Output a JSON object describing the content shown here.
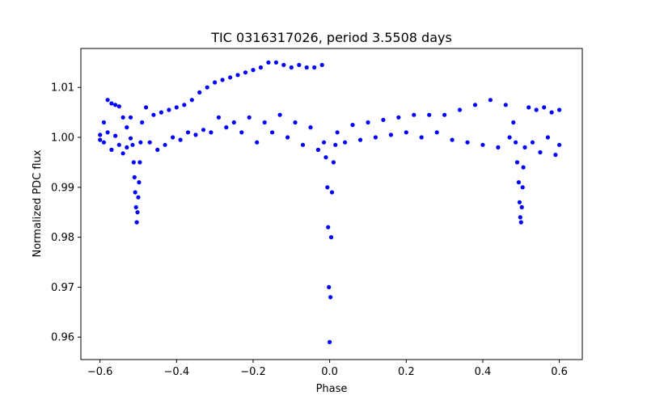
{
  "chart_data": {
    "type": "scatter",
    "title": "TIC 0316317026, period 3.5508 days",
    "xlabel": "Phase",
    "ylabel": "Normalized PDC flux",
    "xlim": [
      -0.65,
      0.66
    ],
    "ylim": [
      0.9555,
      1.0178
    ],
    "xticks": [
      -0.6,
      -0.4,
      -0.2,
      0.0,
      0.2,
      0.4,
      0.6
    ],
    "xtick_labels": [
      "−0.6",
      "−0.4",
      "−0.2",
      "0.0",
      "0.2",
      "0.4",
      "0.6"
    ],
    "yticks": [
      0.96,
      0.97,
      0.98,
      0.99,
      1.0,
      1.01
    ],
    "ytick_labels": [
      "0.96",
      "0.97",
      "0.98",
      "0.99",
      "1.00",
      "1.01"
    ],
    "grid": false,
    "marker_color": "#0000ff",
    "series": [
      {
        "points": [
          [
            -0.6,
            1.0005
          ],
          [
            -0.6,
            0.9995
          ],
          [
            -0.59,
            1.003
          ],
          [
            -0.59,
            0.999
          ],
          [
            -0.58,
            1.0075
          ],
          [
            -0.58,
            1.001
          ],
          [
            -0.57,
            1.0068
          ],
          [
            -0.57,
            0.9975
          ],
          [
            -0.56,
            1.0065
          ],
          [
            -0.56,
            1.0003
          ],
          [
            -0.55,
            1.0062
          ],
          [
            -0.55,
            0.9985
          ],
          [
            -0.54,
            1.004
          ],
          [
            -0.54,
            0.9968
          ],
          [
            -0.53,
            1.002
          ],
          [
            -0.53,
            0.998
          ],
          [
            -0.52,
            1.004
          ],
          [
            -0.52,
            0.9998
          ],
          [
            -0.515,
            0.9985
          ],
          [
            -0.512,
            0.995
          ],
          [
            -0.51,
            0.992
          ],
          [
            -0.508,
            0.989
          ],
          [
            -0.506,
            0.986
          ],
          [
            -0.504,
            0.983
          ],
          [
            -0.502,
            0.985
          ],
          [
            -0.5,
            0.988
          ],
          [
            -0.498,
            0.991
          ],
          [
            -0.496,
            0.995
          ],
          [
            -0.494,
            0.999
          ],
          [
            -0.49,
            1.003
          ],
          [
            -0.48,
            1.006
          ],
          [
            -0.47,
            0.999
          ],
          [
            -0.46,
            1.0045
          ],
          [
            -0.45,
            0.9975
          ],
          [
            -0.44,
            1.005
          ],
          [
            -0.43,
            0.9985
          ],
          [
            -0.42,
            1.0055
          ],
          [
            -0.41,
            1.0
          ],
          [
            -0.4,
            1.006
          ],
          [
            -0.39,
            0.9995
          ],
          [
            -0.38,
            1.0065
          ],
          [
            -0.37,
            1.001
          ],
          [
            -0.36,
            1.0075
          ],
          [
            -0.35,
            1.0005
          ],
          [
            -0.34,
            1.009
          ],
          [
            -0.33,
            1.0015
          ],
          [
            -0.32,
            1.01
          ],
          [
            -0.31,
            1.001
          ],
          [
            -0.3,
            1.011
          ],
          [
            -0.29,
            1.004
          ],
          [
            -0.28,
            1.0115
          ],
          [
            -0.27,
            1.002
          ],
          [
            -0.26,
            1.012
          ],
          [
            -0.25,
            1.003
          ],
          [
            -0.24,
            1.0125
          ],
          [
            -0.23,
            1.001
          ],
          [
            -0.22,
            1.013
          ],
          [
            -0.21,
            1.004
          ],
          [
            -0.2,
            1.0135
          ],
          [
            -0.19,
            0.999
          ],
          [
            -0.18,
            1.014
          ],
          [
            -0.17,
            1.003
          ],
          [
            -0.16,
            1.015
          ],
          [
            -0.15,
            1.001
          ],
          [
            -0.14,
            1.015
          ],
          [
            -0.13,
            1.0045
          ],
          [
            -0.12,
            1.0145
          ],
          [
            -0.11,
            1.0
          ],
          [
            -0.1,
            1.014
          ],
          [
            -0.09,
            1.003
          ],
          [
            -0.08,
            1.0145
          ],
          [
            -0.07,
            0.9985
          ],
          [
            -0.06,
            1.014
          ],
          [
            -0.05,
            1.002
          ],
          [
            -0.04,
            1.014
          ],
          [
            -0.03,
            0.9975
          ],
          [
            -0.02,
            1.0145
          ],
          [
            -0.015,
            0.999
          ],
          [
            -0.01,
            0.996
          ],
          [
            -0.006,
            0.99
          ],
          [
            -0.004,
            0.982
          ],
          [
            -0.002,
            0.97
          ],
          [
            0.0,
            0.959
          ],
          [
            0.002,
            0.968
          ],
          [
            0.004,
            0.98
          ],
          [
            0.006,
            0.989
          ],
          [
            0.01,
            0.995
          ],
          [
            0.015,
            0.9985
          ],
          [
            0.02,
            1.001
          ],
          [
            0.04,
            0.999
          ],
          [
            0.06,
            1.0025
          ],
          [
            0.08,
            0.9995
          ],
          [
            0.1,
            1.003
          ],
          [
            0.12,
            1.0
          ],
          [
            0.14,
            1.0035
          ],
          [
            0.16,
            1.0005
          ],
          [
            0.18,
            1.004
          ],
          [
            0.2,
            1.001
          ],
          [
            0.22,
            1.0045
          ],
          [
            0.24,
            1.0
          ],
          [
            0.26,
            1.0045
          ],
          [
            0.28,
            1.001
          ],
          [
            0.3,
            1.0045
          ],
          [
            0.32,
            0.9995
          ],
          [
            0.34,
            1.0055
          ],
          [
            0.36,
            0.999
          ],
          [
            0.38,
            1.0065
          ],
          [
            0.4,
            0.9985
          ],
          [
            0.42,
            1.0075
          ],
          [
            0.44,
            0.998
          ],
          [
            0.46,
            1.0065
          ],
          [
            0.47,
            1.0
          ],
          [
            0.48,
            1.003
          ],
          [
            0.486,
            0.999
          ],
          [
            0.49,
            0.995
          ],
          [
            0.494,
            0.991
          ],
          [
            0.496,
            0.987
          ],
          [
            0.498,
            0.984
          ],
          [
            0.5,
            0.983
          ],
          [
            0.502,
            0.986
          ],
          [
            0.504,
            0.99
          ],
          [
            0.506,
            0.994
          ],
          [
            0.51,
            0.998
          ],
          [
            0.52,
            1.006
          ],
          [
            0.53,
            0.999
          ],
          [
            0.54,
            1.0055
          ],
          [
            0.55,
            0.997
          ],
          [
            0.56,
            1.006
          ],
          [
            0.57,
            1.0
          ],
          [
            0.58,
            1.005
          ],
          [
            0.59,
            0.9965
          ],
          [
            0.6,
            1.0055
          ],
          [
            0.6,
            0.9985
          ]
        ]
      }
    ]
  }
}
